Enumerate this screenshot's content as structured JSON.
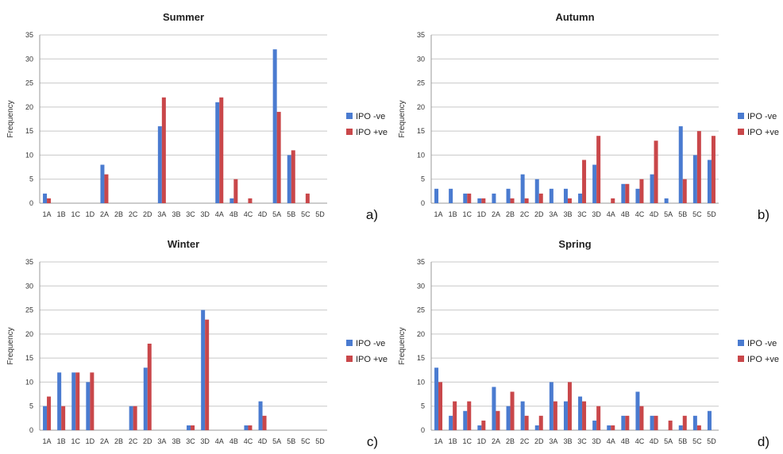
{
  "colors": {
    "ipo_neg": "#4a7bd0",
    "ipo_pos": "#c9474a"
  },
  "chart_data": [
    {
      "type": "bar",
      "title": "Summer",
      "panel_label": "a)",
      "ylabel": "Frequency",
      "ylim": [
        0,
        35
      ],
      "yticks": [
        0,
        5,
        10,
        15,
        20,
        25,
        30,
        35
      ],
      "grid": true,
      "legend": "right",
      "categories": [
        "1A",
        "1B",
        "1C",
        "1D",
        "2A",
        "2B",
        "2C",
        "2D",
        "3A",
        "3B",
        "3C",
        "3D",
        "4A",
        "4B",
        "4C",
        "4D",
        "5A",
        "5B",
        "5C",
        "5D"
      ],
      "series": [
        {
          "name": "IPO -ve",
          "values": [
            2,
            0,
            0,
            0,
            8,
            0,
            0,
            0,
            16,
            0,
            0,
            0,
            21,
            1,
            0,
            0,
            32,
            10,
            0,
            0
          ]
        },
        {
          "name": "IPO +ve",
          "values": [
            1,
            0,
            0,
            0,
            6,
            0,
            0,
            0,
            22,
            0,
            0,
            0,
            22,
            5,
            1,
            0,
            19,
            11,
            2,
            0
          ]
        }
      ]
    },
    {
      "type": "bar",
      "title": "Autumn",
      "panel_label": "b)",
      "ylabel": "Frequency",
      "ylim": [
        0,
        35
      ],
      "yticks": [
        0,
        5,
        10,
        15,
        20,
        25,
        30,
        35
      ],
      "grid": true,
      "legend": "right",
      "categories": [
        "1A",
        "1B",
        "1C",
        "1D",
        "2A",
        "2B",
        "2C",
        "2D",
        "3A",
        "3B",
        "3C",
        "3D",
        "4A",
        "4B",
        "4C",
        "4D",
        "5A",
        "5B",
        "5C",
        "5D"
      ],
      "series": [
        {
          "name": "IPO -ve",
          "values": [
            3,
            3,
            2,
            1,
            2,
            3,
            6,
            5,
            3,
            3,
            2,
            8,
            0,
            4,
            3,
            6,
            1,
            16,
            10,
            9
          ]
        },
        {
          "name": "IPO +ve",
          "values": [
            0,
            0,
            2,
            1,
            0,
            1,
            1,
            2,
            0,
            1,
            9,
            14,
            1,
            4,
            5,
            13,
            0,
            5,
            15,
            14
          ]
        }
      ]
    },
    {
      "type": "bar",
      "title": "Winter",
      "panel_label": "c)",
      "ylabel": "Frequency",
      "ylim": [
        0,
        35
      ],
      "yticks": [
        0,
        5,
        10,
        15,
        20,
        25,
        30,
        35
      ],
      "grid": true,
      "legend": "right",
      "categories": [
        "1A",
        "1B",
        "1C",
        "1D",
        "2A",
        "2B",
        "2C",
        "2D",
        "3A",
        "3B",
        "3C",
        "3D",
        "4A",
        "4B",
        "4C",
        "4D",
        "5A",
        "5B",
        "5C",
        "5D"
      ],
      "series": [
        {
          "name": "IPO -ve",
          "values": [
            5,
            12,
            12,
            10,
            0,
            0,
            5,
            13,
            0,
            0,
            1,
            25,
            0,
            0,
            1,
            6,
            0,
            0,
            0,
            0
          ]
        },
        {
          "name": "IPO +ve",
          "values": [
            7,
            5,
            12,
            12,
            0,
            0,
            5,
            18,
            0,
            0,
            1,
            23,
            0,
            0,
            1,
            3,
            0,
            0,
            0,
            0
          ]
        }
      ]
    },
    {
      "type": "bar",
      "title": "Spring",
      "panel_label": "d)",
      "ylabel": "Frequency",
      "ylim": [
        0,
        35
      ],
      "yticks": [
        0,
        5,
        10,
        15,
        20,
        25,
        30,
        35
      ],
      "grid": true,
      "legend": "right",
      "categories": [
        "1A",
        "1B",
        "1C",
        "1D",
        "2A",
        "2B",
        "2C",
        "2D",
        "3A",
        "3B",
        "3C",
        "3D",
        "4A",
        "4B",
        "4C",
        "4D",
        "5A",
        "5B",
        "5C",
        "5D"
      ],
      "series": [
        {
          "name": "IPO -ve",
          "values": [
            13,
            3,
            4,
            1,
            9,
            5,
            6,
            1,
            10,
            6,
            7,
            2,
            1,
            3,
            8,
            3,
            0,
            1,
            3,
            4
          ]
        },
        {
          "name": "IPO +ve",
          "values": [
            10,
            6,
            6,
            2,
            4,
            8,
            3,
            3,
            6,
            10,
            6,
            5,
            1,
            3,
            5,
            3,
            2,
            3,
            1,
            0
          ]
        }
      ]
    }
  ]
}
